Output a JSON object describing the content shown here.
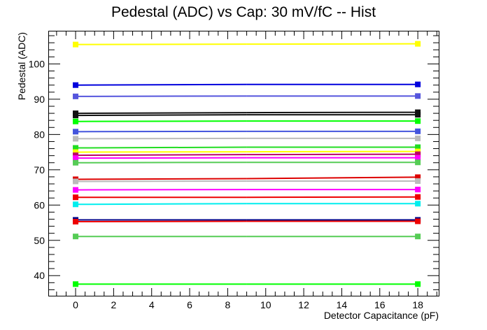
{
  "chart_data": {
    "type": "line",
    "title": "Pedestal (ADC) vs Cap: 30 mV/fC -- Hist",
    "xlabel": "Detector Capacitance (pF)",
    "ylabel": "Pedestal (ADC)",
    "xlim": [
      -1.4,
      19.1
    ],
    "ylim": [
      34.3,
      109.2
    ],
    "xticks": [
      0,
      2,
      4,
      6,
      8,
      10,
      12,
      14,
      16,
      18
    ],
    "yticks": [
      40,
      50,
      60,
      70,
      80,
      90,
      100
    ],
    "grid": false,
    "legend": "none",
    "x": [
      0,
      9,
      18
    ],
    "series": [
      {
        "color": "#ffff00",
        "values": [
          105.5,
          105.6,
          105.7
        ]
      },
      {
        "color": "#0000dd",
        "values": [
          94.0,
          94.2,
          94.2
        ]
      },
      {
        "color": "#5555dd",
        "values": [
          90.8,
          90.9,
          90.9
        ]
      },
      {
        "color": "#111111",
        "values": [
          86.0,
          86.2,
          86.3
        ]
      },
      {
        "color": "#111111",
        "values": [
          85.4,
          85.6,
          85.6
        ]
      },
      {
        "color": "#00ff00",
        "values": [
          83.7,
          83.8,
          83.8
        ]
      },
      {
        "color": "#4455dd",
        "values": [
          80.8,
          80.9,
          80.9
        ]
      },
      {
        "color": "#bbbbbb",
        "values": [
          78.8,
          78.9,
          78.9
        ]
      },
      {
        "color": "#22dd22",
        "values": [
          76.2,
          76.4,
          76.4
        ]
      },
      {
        "color": "#ffff00",
        "values": [
          75.0,
          75.1,
          75.2
        ]
      },
      {
        "color": "#bb0066",
        "values": [
          74.1,
          74.3,
          74.4
        ]
      },
      {
        "color": "#ff00ff",
        "values": [
          73.3,
          73.4,
          73.4
        ]
      },
      {
        "color": "#55cc55",
        "values": [
          72.0,
          72.1,
          72.1
        ]
      },
      {
        "color": "#dd0000",
        "values": [
          67.3,
          67.5,
          67.9
        ]
      },
      {
        "color": "#bbbbbb",
        "values": [
          66.7,
          66.8,
          66.8
        ]
      },
      {
        "color": "#ff00ff",
        "values": [
          64.3,
          64.4,
          64.4
        ]
      },
      {
        "color": "#ee0000",
        "values": [
          62.2,
          62.2,
          62.3
        ]
      },
      {
        "color": "#00eeee",
        "values": [
          60.2,
          60.4,
          60.4
        ]
      },
      {
        "color": "#000088",
        "values": [
          55.8,
          55.8,
          55.8
        ]
      },
      {
        "color": "#ee0000",
        "values": [
          55.3,
          55.4,
          55.4
        ]
      },
      {
        "color": "#55cc55",
        "values": [
          51.1,
          51.1,
          51.1
        ]
      },
      {
        "color": "#00ff00",
        "values": [
          37.6,
          37.6,
          37.6
        ]
      }
    ]
  }
}
